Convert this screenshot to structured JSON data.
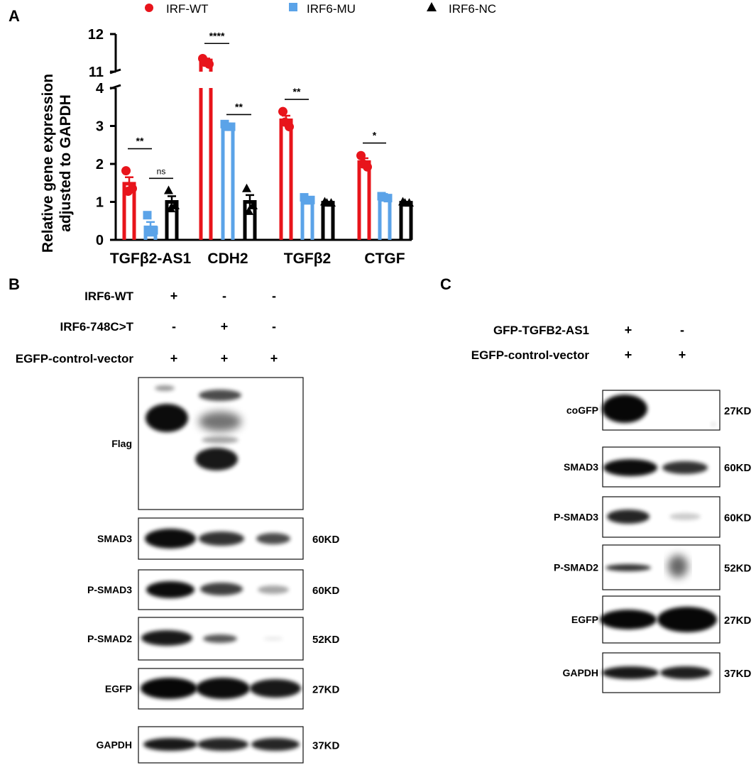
{
  "panel_labels": {
    "a": "A",
    "b": "B",
    "c": "C"
  },
  "colors": {
    "wt": "#e8141b",
    "mu": "#5ba3e8",
    "nc": "#000000"
  },
  "chart_data": {
    "type": "bar",
    "ylabel_line1": "Relative gene expression",
    "ylabel_line2": "adjusted to GAPDH",
    "categories": [
      "TGFβ2-AS1",
      "CDH2",
      "TGFβ2",
      "CTGF"
    ],
    "series": [
      {
        "name": "IRF-WT",
        "values": [
          1.48,
          11.3,
          3.15,
          2.05
        ]
      },
      {
        "name": "IRF6-MU",
        "values": [
          0.33,
          3.0,
          1.07,
          1.12
        ]
      },
      {
        "name": "IRF6-NC",
        "values": [
          1.0,
          1.0,
          0.98,
          0.98
        ]
      }
    ],
    "points": {
      "IRF-WT": [
        [
          1.82,
          1.35,
          1.28
        ],
        [
          11.35,
          11.2,
          11.25
        ],
        [
          3.38,
          2.98,
          3.1
        ],
        [
          2.22,
          1.92,
          2.0
        ]
      ],
      "IRF6-MU": [
        [
          0.65,
          0.25,
          0.2
        ],
        [
          3.05,
          2.98,
          2.98
        ],
        [
          1.12,
          1.05,
          1.04
        ],
        [
          1.15,
          1.1,
          1.12
        ]
      ],
      "IRF6-NC": [
        [
          1.3,
          0.9,
          0.82
        ],
        [
          1.35,
          0.9,
          0.75
        ],
        [
          1.0,
          0.97,
          0.97
        ],
        [
          1.0,
          0.97,
          0.97
        ]
      ]
    },
    "errors": {
      "IRF-WT": [
        0.17,
        0.05,
        0.12,
        0.1
      ],
      "IRF6-MU": [
        0.14,
        0.03,
        0.03,
        0.02
      ],
      "IRF6-NC": [
        0.15,
        0.18,
        0.01,
        0.01
      ]
    },
    "y_lower_range": [
      0,
      4
    ],
    "y_upper_range": [
      11,
      12
    ],
    "y_lower_ticks": [
      "0",
      "1",
      "2",
      "3",
      "4"
    ],
    "y_upper_ticks": [
      "11",
      "12"
    ],
    "legend_position": "top",
    "significance": [
      {
        "group": 0,
        "pair": "wt-mu",
        "label": "**",
        "y": 2.4
      },
      {
        "group": 0,
        "pair": "mu-nc",
        "label": "ns",
        "y": 1.62
      },
      {
        "group": 1,
        "pair": "wt-mu",
        "label": "****",
        "y": 11.75
      },
      {
        "group": 1,
        "pair": "mu-nc",
        "label": "**",
        "y": 3.3
      },
      {
        "group": 2,
        "pair": "wt-mu",
        "label": "**",
        "y": 3.7
      },
      {
        "group": 3,
        "pair": "wt-mu",
        "label": "*",
        "y": 2.55
      }
    ]
  },
  "blot_b": {
    "conditions": [
      {
        "label": "IRF6-WT",
        "marks": [
          "+",
          "-",
          "-"
        ]
      },
      {
        "label": "IRF6-748C>T",
        "marks": [
          "-",
          "+",
          "-"
        ]
      },
      {
        "label": "EGFP-control-vector",
        "marks": [
          "+",
          "+",
          "+"
        ]
      }
    ],
    "rows": [
      {
        "label": "Flag",
        "size": ""
      },
      {
        "label": "SMAD3",
        "size": "60KD"
      },
      {
        "label": "P-SMAD3",
        "size": "60KD"
      },
      {
        "label": "P-SMAD2",
        "size": "52KD"
      },
      {
        "label": "EGFP",
        "size": "27KD"
      },
      {
        "label": "GAPDH",
        "size": "37KD"
      }
    ]
  },
  "blot_c": {
    "conditions": [
      {
        "label": "GFP-TGFB2-AS1",
        "marks": [
          "+",
          "-"
        ]
      },
      {
        "label": "EGFP-control-vector",
        "marks": [
          "+",
          "+"
        ]
      }
    ],
    "rows": [
      {
        "label": "coGFP",
        "size": "27KD"
      },
      {
        "label": "SMAD3",
        "size": "60KD"
      },
      {
        "label": "P-SMAD3",
        "size": "60KD"
      },
      {
        "label": "P-SMAD2",
        "size": "52KD"
      },
      {
        "label": "EGFP",
        "size": "27KD"
      },
      {
        "label": "GAPDH",
        "size": "37KD"
      }
    ]
  }
}
